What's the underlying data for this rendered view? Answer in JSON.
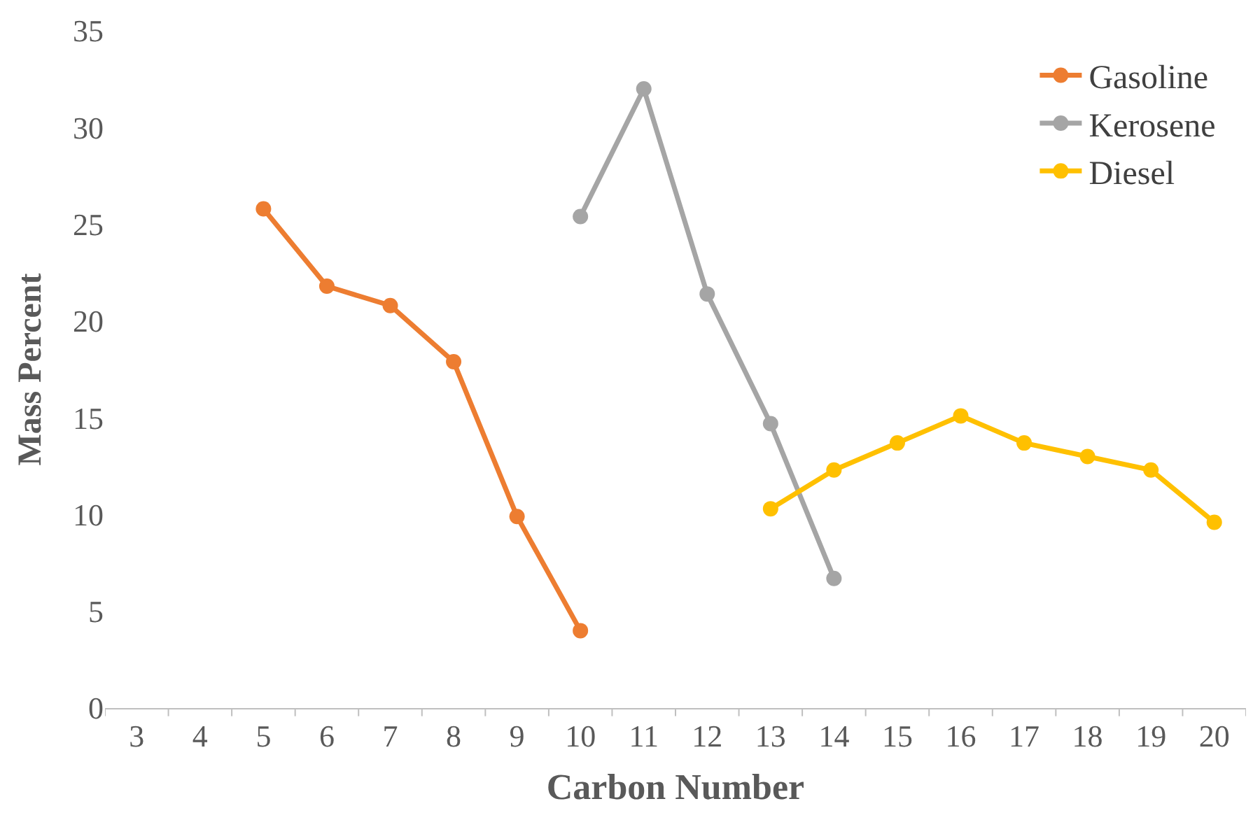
{
  "chart_data": {
    "type": "line",
    "xlabel": "Carbon Number",
    "ylabel": "Mass Percent",
    "categories": [
      "3",
      "4",
      "5",
      "6",
      "7",
      "8",
      "9",
      "10",
      "11",
      "12",
      "13",
      "14",
      "15",
      "16",
      "17",
      "18",
      "19",
      "20"
    ],
    "series": [
      {
        "name": "Gasoline",
        "color": "#ed7d31",
        "values": [
          null,
          null,
          25.8,
          21.8,
          20.8,
          17.9,
          9.9,
          4.0,
          null,
          null,
          null,
          null,
          null,
          null,
          null,
          null,
          null,
          null
        ]
      },
      {
        "name": "Kerosene",
        "color": "#a5a5a5",
        "values": [
          null,
          null,
          null,
          null,
          null,
          null,
          null,
          25.4,
          32.0,
          21.4,
          14.7,
          6.7,
          null,
          null,
          null,
          null,
          null,
          null
        ]
      },
      {
        "name": "Diesel",
        "color": "#ffc000",
        "values": [
          null,
          null,
          null,
          null,
          null,
          null,
          null,
          null,
          null,
          null,
          10.3,
          12.3,
          13.7,
          15.1,
          13.7,
          13.0,
          12.3,
          9.6
        ]
      }
    ],
    "ylim": [
      0,
      35
    ],
    "yticks": [
      0,
      5,
      10,
      15,
      20,
      25,
      30,
      35
    ],
    "legend": "top right",
    "marker": "circle",
    "line_style": "solid"
  }
}
